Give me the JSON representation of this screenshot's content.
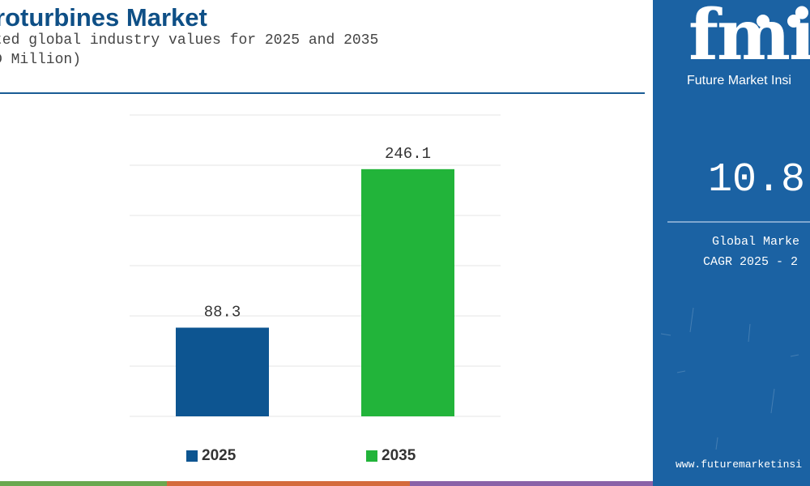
{
  "header": {
    "title": "roturbines Market",
    "subtitle_line1": "ted global industry values for 2025 and 2035",
    "subtitle_line2": "D Million)"
  },
  "chart_data": {
    "type": "bar",
    "categories": [
      "2025",
      "2035"
    ],
    "values": [
      88.3,
      246.1
    ],
    "value_labels": [
      "88.3",
      "246.1"
    ],
    "colors": [
      "#0d5591",
      "#22b43a"
    ],
    "title": "roturbines Market",
    "xlabel": "",
    "ylabel": "",
    "ylim": [
      0,
      300
    ],
    "grid": true,
    "legend": "bottom",
    "legend_entries": [
      "2025",
      "2035"
    ]
  },
  "side_panel": {
    "logo_mark": "fmi",
    "logo_text": "Future Market Insi",
    "cagr_value": "10.8",
    "cagr_label": "Global Marke",
    "cagr_period": "CAGR 2025 - 2",
    "website": "www.futuremarketinsi",
    "background_color": "#1b62a3"
  },
  "bottom_strip_colors": [
    "#6aa84f",
    "#d46b3c",
    "#8a62a8"
  ]
}
